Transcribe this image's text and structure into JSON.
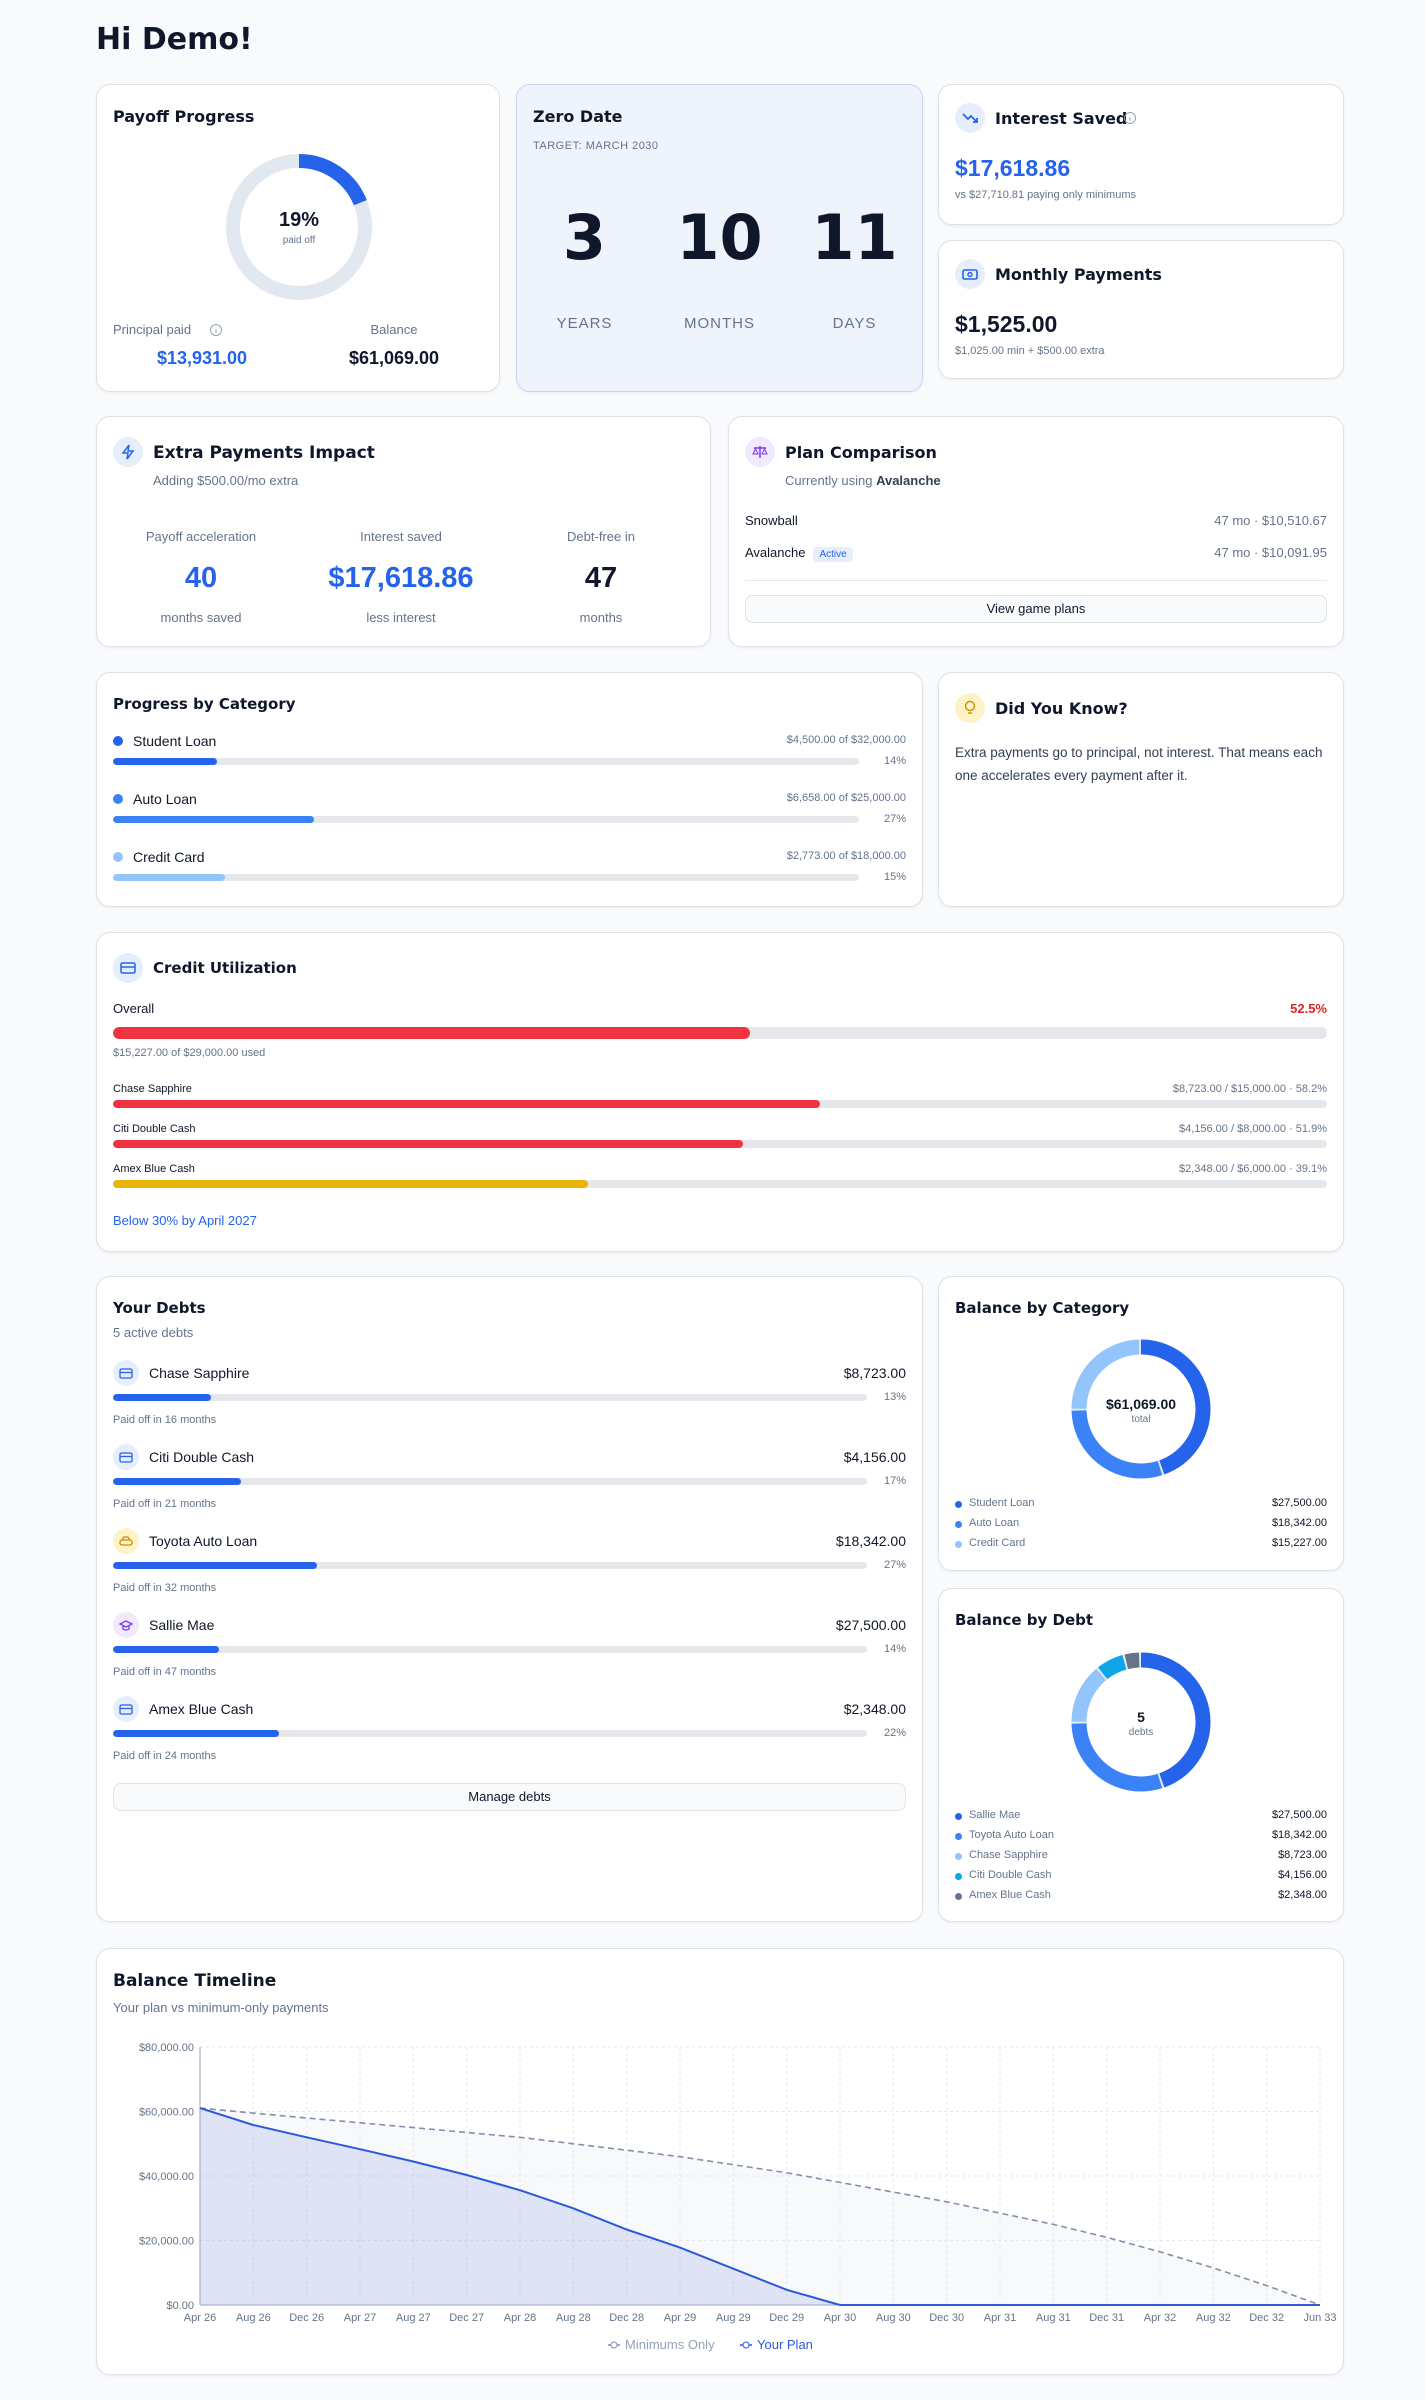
{
  "header": {
    "greeting": "Hi Demo!"
  },
  "payoff_progress": {
    "title": "Payoff Progress",
    "percent": {
      "value": 19,
      "label": "19%"
    },
    "percent_caption": "paid off",
    "principal_paid_label": "Principal paid",
    "principal_paid": "$13,931.00",
    "balance_label": "Balance",
    "balance": "$61,069.00"
  },
  "zero_date": {
    "title": "Zero Date",
    "target": "TARGET: MARCH 2030",
    "units": [
      {
        "value": 3,
        "label": "YEARS"
      },
      {
        "value": 10,
        "label": "MONTHS"
      },
      {
        "value": 11,
        "label": "DAYS"
      }
    ]
  },
  "interest_saved": {
    "title": "Interest Saved",
    "amount": "$17,618.86",
    "note": "vs $27,710.81 paying only minimums"
  },
  "monthly_payments": {
    "title": "Monthly Payments",
    "amount": "$1,525.00",
    "note": "$1,025.00 min + $500.00 extra"
  },
  "extra_payments": {
    "title": "Extra Payments Impact",
    "subtitle": "Adding $500.00/mo extra",
    "stats": [
      {
        "label": "Payoff acceleration",
        "value": "40",
        "caption": "months saved"
      },
      {
        "label": "Interest saved",
        "value": "$17,618.86",
        "caption": "less interest"
      },
      {
        "label": "Debt-free in",
        "value": "47",
        "caption": "months"
      }
    ]
  },
  "plan_comparison": {
    "title": "Plan Comparison",
    "subtitle_prefix": "Currently using",
    "current_plan": "Avalanche",
    "plans": [
      {
        "name": "Snowball",
        "detail": "47 mo · $10,510.67"
      },
      {
        "name": "Avalanche",
        "badge": "Active",
        "detail": "47 mo · $10,091.95"
      }
    ],
    "button": "View game plans"
  },
  "progress_by_category": {
    "title": "Progress by Category",
    "items": [
      {
        "name": "Student Loan",
        "detail": "$4,500.00 of $32,000.00",
        "color": "#2563eb",
        "progress": {
          "value": 14,
          "label": "14%"
        }
      },
      {
        "name": "Auto Loan",
        "detail": "$6,658.00 of $25,000.00",
        "color": "#3b82f6",
        "progress": {
          "value": 27,
          "label": "27%"
        }
      },
      {
        "name": "Credit Card",
        "detail": "$2,773.00 of $18,000.00",
        "color": "#93c5fd",
        "progress": {
          "value": 15,
          "label": "15%"
        }
      }
    ]
  },
  "did_you_know": {
    "title": "Did You Know?",
    "text": "Extra payments go to principal, not interest. That means each one accelerates every payment after it."
  },
  "credit_utilization": {
    "title": "Credit Utilization",
    "overall_label": "Overall",
    "overall": {
      "value": 52.5,
      "label": "52.5%"
    },
    "overall_note": "$15,227.00 of $29,000.00 used",
    "cards": [
      {
        "name": "Chase Sapphire",
        "detail": "$8,723.00 / $15,000.00 · 58.2%",
        "utilization": 58.2,
        "color": "#ef3340"
      },
      {
        "name": "Citi Double Cash",
        "detail": "$4,156.00 / $8,000.00 · 51.9%",
        "utilization": 51.9,
        "color": "#ef3340"
      },
      {
        "name": "Amex Blue Cash",
        "detail": "$2,348.00 / $6,000.00 · 39.1%",
        "utilization": 39.1,
        "color": "#eab308"
      }
    ],
    "footer": "Below 30% by April 2027"
  },
  "your_debts": {
    "title": "Your Debts",
    "subtitle": "5 active debts",
    "debts": [
      {
        "name": "Chase Sapphire",
        "balance": "$8,723.00",
        "progress": {
          "value": 13,
          "label": "13%"
        },
        "payoff": "Paid off in 16 months"
      },
      {
        "name": "Citi Double Cash",
        "balance": "$4,156.00",
        "progress": {
          "value": 17,
          "label": "17%"
        },
        "payoff": "Paid off in 21 months"
      },
      {
        "name": "Toyota Auto Loan",
        "balance": "$18,342.00",
        "progress": {
          "value": 27,
          "label": "27%"
        },
        "payoff": "Paid off in 32 months"
      },
      {
        "name": "Sallie Mae",
        "balance": "$27,500.00",
        "progress": {
          "value": 14,
          "label": "14%"
        },
        "payoff": "Paid off in 47 months"
      },
      {
        "name": "Amex Blue Cash",
        "balance": "$2,348.00",
        "progress": {
          "value": 22,
          "label": "22%"
        },
        "payoff": "Paid off in 24 months"
      }
    ],
    "button": "Manage debts"
  },
  "balance_by_category": {
    "title": "Balance by Category",
    "center_value": "$61,069.00",
    "center_caption": "total",
    "chart_data": {
      "type": "donut",
      "categories": [
        "Student Loan",
        "Auto Loan",
        "Credit Card"
      ],
      "values": [
        27500,
        18342,
        15227
      ],
      "value_labels": [
        "$27,500.00",
        "$18,342.00",
        "$15,227.00"
      ],
      "colors": [
        "#2563eb",
        "#3b82f6",
        "#93c5fd"
      ]
    }
  },
  "balance_by_debt": {
    "title": "Balance by Debt",
    "center_value": "5",
    "center_caption": "debts",
    "chart_data": {
      "type": "donut",
      "categories": [
        "Sallie Mae",
        "Toyota Auto Loan",
        "Chase Sapphire",
        "Citi Double Cash",
        "Amex Blue Cash"
      ],
      "values": [
        27500,
        18342,
        8723,
        4156,
        2348
      ],
      "value_labels": [
        "$27,500.00",
        "$18,342.00",
        "$8,723.00",
        "$4,156.00",
        "$2,348.00"
      ],
      "colors": [
        "#2563eb",
        "#3b82f6",
        "#93c5fd",
        "#0ea5e9",
        "#64748b"
      ]
    }
  },
  "balance_timeline": {
    "title": "Balance Timeline",
    "subtitle": "Your plan vs minimum-only payments",
    "chart_data": {
      "type": "line",
      "categories": [
        "Apr 26",
        "Aug 26",
        "Dec 26",
        "Apr 27",
        "Aug 27",
        "Dec 27",
        "Apr 28",
        "Aug 28",
        "Dec 28",
        "Apr 29",
        "Aug 29",
        "Dec 29",
        "Apr 30",
        "Aug 30",
        "Dec 30",
        "Apr 31",
        "Aug 31",
        "Dec 31",
        "Apr 32",
        "Aug 32",
        "Dec 32",
        "Jun 33"
      ],
      "series": [
        {
          "name": "Minimums Only",
          "color": "#8190b0",
          "dashed": true,
          "values": [
            61069,
            59500,
            58000,
            56500,
            55000,
            53500,
            52000,
            50000,
            48000,
            46000,
            43500,
            41000,
            38000,
            35000,
            32000,
            28500,
            25000,
            21000,
            16500,
            11500,
            6000,
            0
          ]
        },
        {
          "name": "Your Plan",
          "color": "#2b59d9",
          "dashed": false,
          "values": [
            61069,
            55800,
            52000,
            48300,
            44500,
            40300,
            35600,
            30000,
            23400,
            17800,
            11250,
            4700,
            0,
            0,
            0,
            0,
            0,
            0,
            0,
            0,
            0,
            0
          ]
        }
      ],
      "ylim": [
        0,
        80000
      ],
      "yticks": [
        {
          "value": 0,
          "label": "$0.00"
        },
        {
          "value": 20000,
          "label": "$20,000.00"
        },
        {
          "value": 40000,
          "label": "$40,000.00"
        },
        {
          "value": 60000,
          "label": "$60,000.00"
        },
        {
          "value": 80000,
          "label": "$80,000.00"
        }
      ],
      "grid": true
    }
  }
}
